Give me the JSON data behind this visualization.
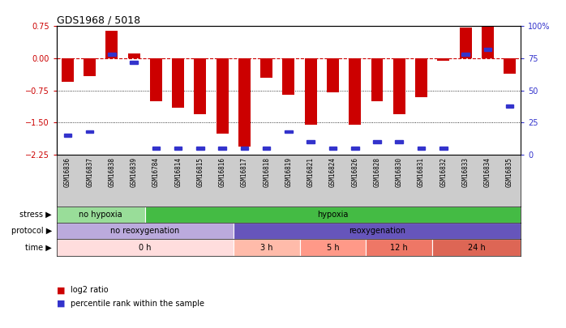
{
  "title": "GDS1968 / 5018",
  "samples": [
    "GSM16836",
    "GSM16837",
    "GSM16838",
    "GSM16839",
    "GSM16784",
    "GSM16814",
    "GSM16815",
    "GSM16816",
    "GSM16817",
    "GSM16818",
    "GSM16819",
    "GSM16821",
    "GSM16824",
    "GSM16826",
    "GSM16828",
    "GSM16830",
    "GSM16831",
    "GSM16832",
    "GSM16833",
    "GSM16834",
    "GSM16835"
  ],
  "log2_ratio": [
    -0.55,
    -0.42,
    0.65,
    0.12,
    -1.0,
    -1.15,
    -1.3,
    -1.75,
    -2.05,
    -0.45,
    -0.85,
    -1.55,
    -0.8,
    -1.55,
    -1.0,
    -1.3,
    -0.9,
    -0.05,
    0.72,
    0.75,
    -0.35
  ],
  "percentile_rank": [
    15,
    18,
    78,
    72,
    5,
    5,
    5,
    5,
    5,
    5,
    18,
    10,
    5,
    5,
    10,
    10,
    5,
    5,
    78,
    82,
    38
  ],
  "bar_color": "#cc0000",
  "blue_color": "#3333cc",
  "ylim_left": [
    -2.25,
    0.75
  ],
  "ylim_right": [
    0,
    100
  ],
  "yticks_left": [
    0.75,
    0,
    -0.75,
    -1.5,
    -2.25
  ],
  "yticks_right": [
    100,
    75,
    50,
    25,
    0
  ],
  "stress_regions": [
    {
      "label": "no hypoxia",
      "start": 0,
      "end": 4,
      "color": "#99dd99"
    },
    {
      "label": "hypoxia",
      "start": 4,
      "end": 21,
      "color": "#44bb44"
    }
  ],
  "protocol_regions": [
    {
      "label": "no reoxygenation",
      "start": 0,
      "end": 8,
      "color": "#bbaadd"
    },
    {
      "label": "reoxygenation",
      "start": 8,
      "end": 21,
      "color": "#6655bb"
    }
  ],
  "time_regions": [
    {
      "label": "0 h",
      "start": 0,
      "end": 8,
      "color": "#ffdddd"
    },
    {
      "label": "3 h",
      "start": 8,
      "end": 11,
      "color": "#ffbbaa"
    },
    {
      "label": "5 h",
      "start": 11,
      "end": 14,
      "color": "#ff9988"
    },
    {
      "label": "12 h",
      "start": 14,
      "end": 17,
      "color": "#ee7766"
    },
    {
      "label": "24 h",
      "start": 17,
      "end": 21,
      "color": "#dd6655"
    }
  ],
  "stress_label": "stress",
  "protocol_label": "protocol",
  "time_label": "time",
  "legend_log2": "log2 ratio",
  "legend_pct": "percentile rank within the sample",
  "tick_label_color_left": "#cc0000",
  "tick_label_color_right": "#3333cc",
  "sample_bg_color": "#cccccc",
  "fig_bg": "#ffffff"
}
